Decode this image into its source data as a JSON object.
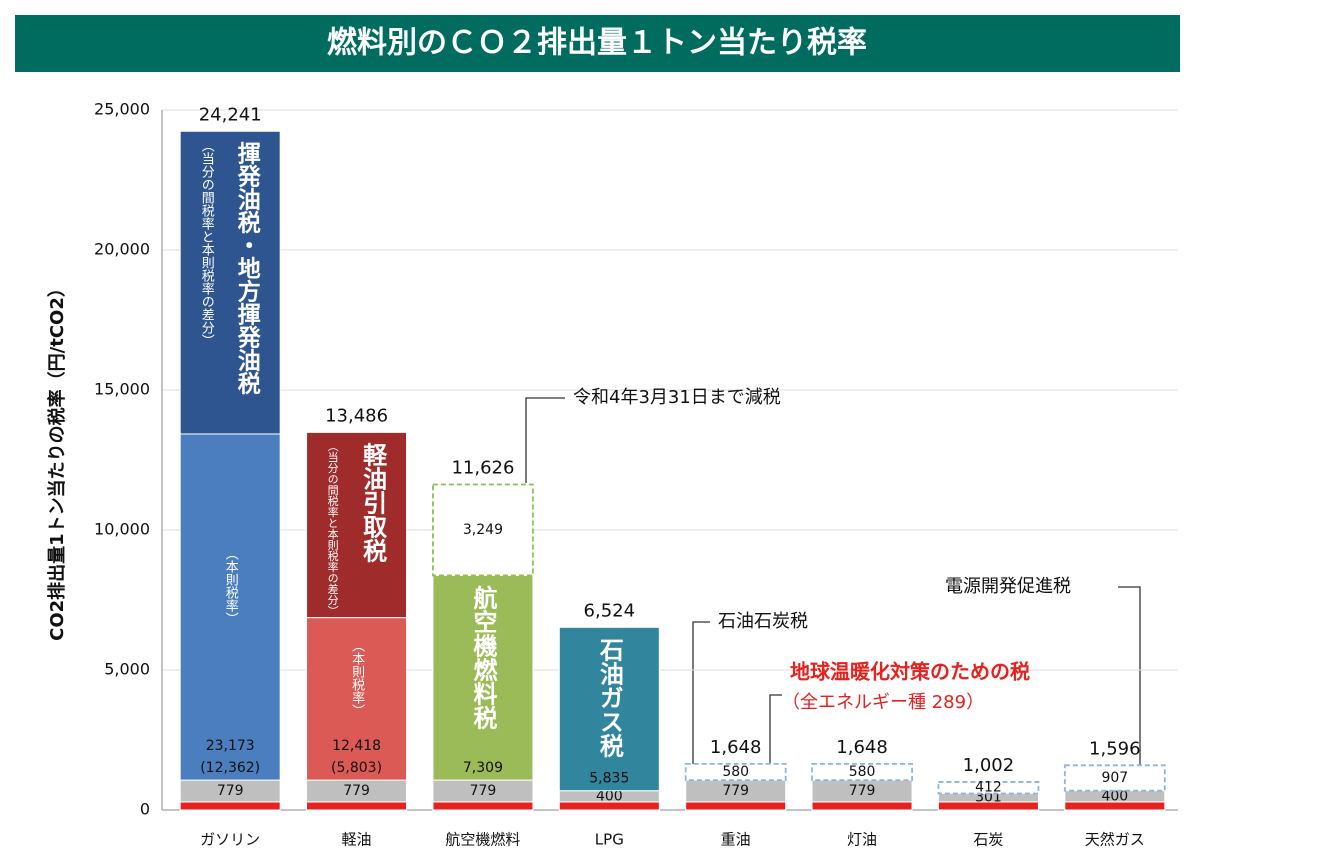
{
  "chart_data": {
    "type": "bar",
    "stacked": true,
    "title": "燃料別のＣＯ２排出量１トン当たり税率",
    "y_label": "CO2排出量1トン当たりの税率（円/tCO2）",
    "categories": [
      "ガソリン",
      "軽油",
      "航空機燃料",
      "LPG",
      "重油",
      "灯油",
      "石炭",
      "天然ガス"
    ],
    "ylim": [
      0,
      25000
    ],
    "yticks": [
      0,
      {
        "value": 5000,
        "label": "5,000"
      },
      {
        "value": 10000,
        "label": "10,000"
      },
      {
        "value": 15000,
        "label": "15,000"
      },
      {
        "value": 20000,
        "label": "20,000"
      },
      {
        "value": 25000,
        "label": "25,000"
      }
    ],
    "grid": true,
    "series": [
      {
        "name": "地球温暖化対策のための税",
        "color": "#e8201e",
        "values": [
          289,
          289,
          289,
          289,
          289,
          289,
          289,
          289
        ]
      },
      {
        "name": "石油石炭税",
        "color": "#bfbfbf",
        "values": [
          779,
          779,
          779,
          400,
          779,
          779,
          301,
          400
        ]
      },
      {
        "name": "（本則税率）",
        "colors": [
          "#4a7ebf",
          "#dc5a55",
          "#9bbb59",
          "#31859c",
          null,
          null,
          null,
          null
        ],
        "values": [
          12362,
          5803,
          7309,
          5835,
          null,
          null,
          null,
          null
        ],
        "value_labels": [
          "(12,362)",
          "(5,803)",
          "7,309",
          "5,835",
          null,
          null,
          null,
          null
        ]
      },
      {
        "name": "（当分の間税率と本則税率の差分）",
        "colors": [
          "#2e5590",
          "#a02b2b",
          null,
          null,
          null,
          null,
          null,
          null
        ],
        "values": [
          10811,
          6615,
          null,
          null,
          null,
          null,
          null,
          null
        ]
      },
      {
        "name": "令和4年3月31日まで減税",
        "color": "#8cc152",
        "dashed": true,
        "values": [
          null,
          null,
          3249,
          null,
          null,
          null,
          null,
          null
        ],
        "value_labels": [
          null,
          null,
          "3,249",
          null,
          null,
          null,
          null,
          null
        ]
      },
      {
        "name": "電源開発促進税",
        "color": "#8db3e2",
        "dashed": true,
        "values": [
          null,
          null,
          null,
          null,
          580,
          580,
          412,
          907
        ]
      }
    ],
    "tax_names": [
      "揮発油税・地方揮発油税",
      "軽油引取税",
      "航空機燃料税",
      "石油ガス税",
      null,
      null,
      null,
      null
    ],
    "tax_totals": {
      "values": [
        23173,
        12418,
        null,
        null,
        null,
        null,
        null,
        null
      ],
      "value_labels": [
        "23,173",
        "12,418",
        null,
        null,
        null,
        null,
        null,
        null
      ]
    },
    "totals": {
      "values": [
        24241,
        13486,
        11626,
        6524,
        1648,
        1648,
        1002,
        1596
      ],
      "value_labels": [
        "24,241",
        "13,486",
        "11,626",
        "6,524",
        "1,648",
        "1,648",
        "1,002",
        "1,596"
      ]
    },
    "annotations": [
      "（全エネルギー種 289）"
    ]
  }
}
